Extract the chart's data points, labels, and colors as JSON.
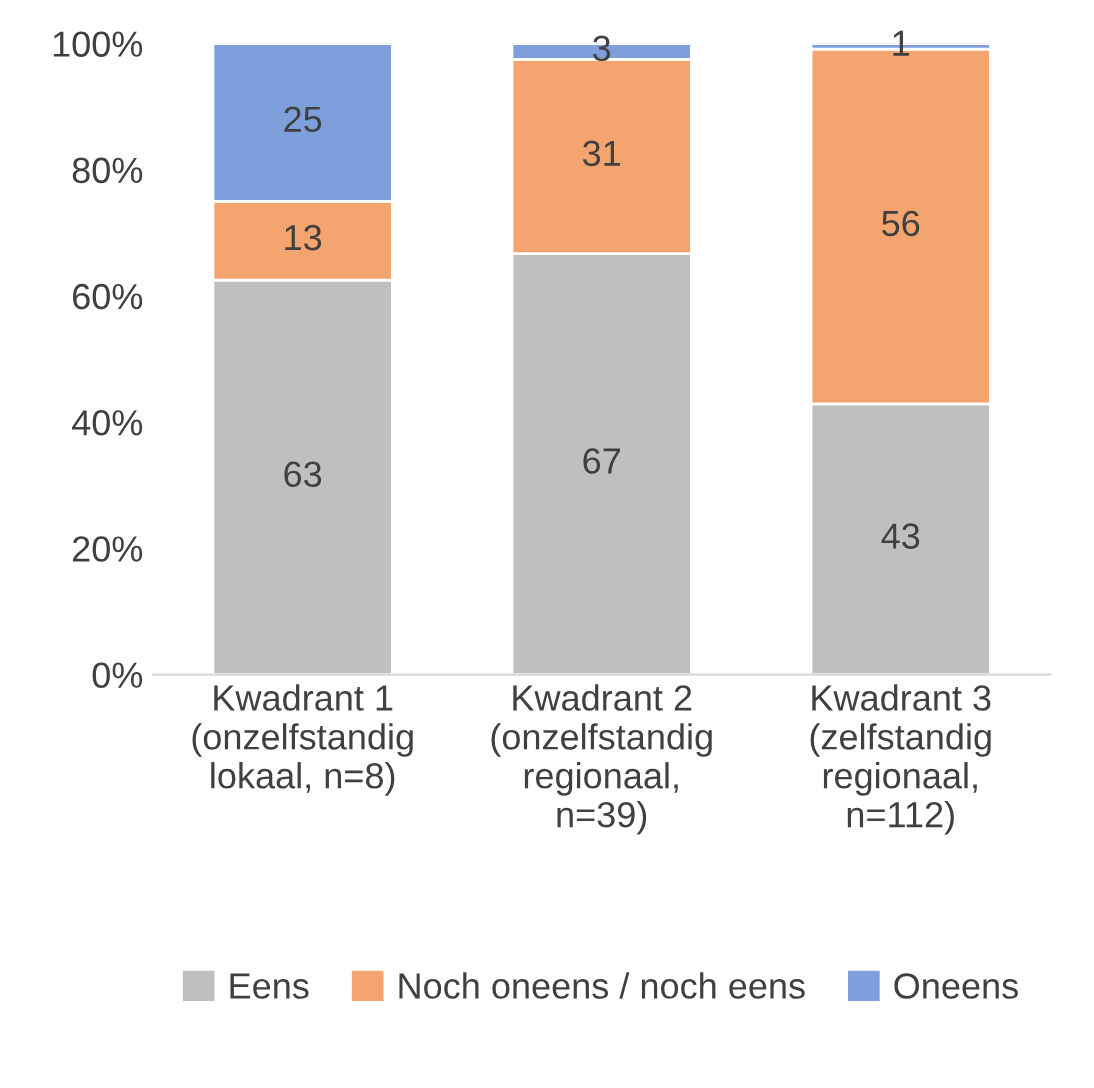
{
  "chart_data": {
    "type": "bar",
    "stacked": true,
    "categories": [
      "Kwadrant 1\n(onzelfstandig\nlokaal, n=8)",
      "Kwadrant 2\n(onzelfstandig\nregionaal,\nn=39)",
      "Kwadrant 3\n(zelfstandig\nregionaal,\nn=112)"
    ],
    "series": [
      {
        "name": "Eens",
        "color": "#bfbfbf",
        "values": [
          62.5,
          66.7,
          42.9
        ],
        "value_labels": [
          "63",
          "67",
          "43"
        ]
      },
      {
        "name": "Noch oneens / noch eens",
        "color": "#f4a46e",
        "values": [
          12.5,
          30.8,
          56.2
        ],
        "value_labels": [
          "13",
          "31",
          "56"
        ]
      },
      {
        "name": "Oneens",
        "color": "#7f9fdc",
        "values": [
          25,
          2.5,
          0.9
        ],
        "value_labels": [
          "25",
          "3",
          "1"
        ]
      }
    ],
    "ylim": [
      0,
      100
    ],
    "yticks": [
      {
        "value": 0,
        "label": "0%"
      },
      {
        "value": 20,
        "label": "20%"
      },
      {
        "value": 40,
        "label": "40%"
      },
      {
        "value": 60,
        "label": "60%"
      },
      {
        "value": 80,
        "label": "80%"
      },
      {
        "value": 100,
        "label": "100%"
      }
    ],
    "grid": false,
    "legend": "bottom"
  }
}
